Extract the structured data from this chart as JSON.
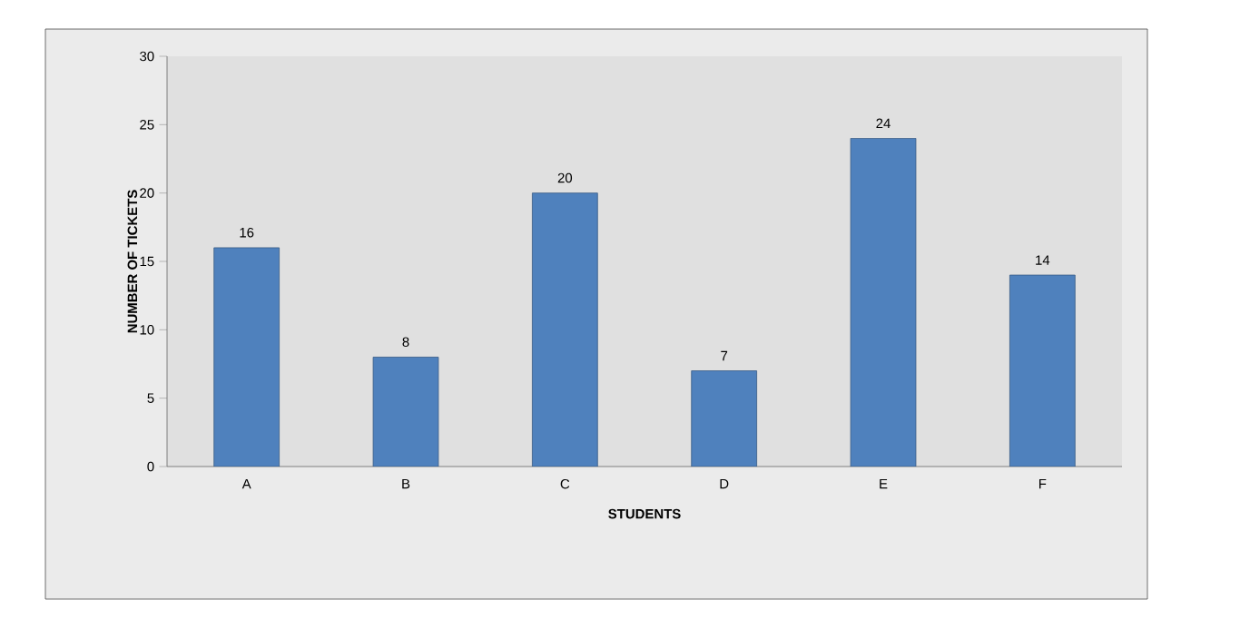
{
  "chart_data": {
    "type": "bar",
    "xlabel": "STUDENTS",
    "ylabel": "NUMBER OF TICKETS",
    "categories": [
      "A",
      "B",
      "C",
      "D",
      "E",
      "F"
    ],
    "values": [
      16,
      8,
      20,
      7,
      24,
      14
    ],
    "color": "#4f81bd",
    "ylim": [
      0,
      30
    ],
    "yticks": [
      0,
      5,
      10,
      15,
      20,
      25,
      30
    ],
    "data_labels": true
  }
}
